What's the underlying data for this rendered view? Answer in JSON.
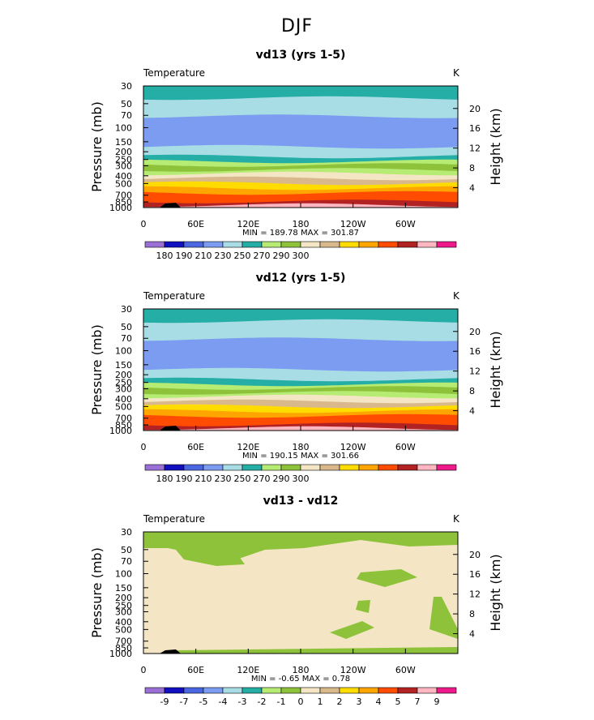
{
  "page": {
    "supertitle": "DJF"
  },
  "chart_data": [
    {
      "type": "contour",
      "title": "vd13 (yrs 1-5)",
      "variable": "Temperature",
      "units": "K",
      "ylabel": "Pressure (mb)",
      "y2label": "Height (km)",
      "xticks": [
        "0",
        "60E",
        "120E",
        "180",
        "120W",
        "60W"
      ],
      "pressure_ticks": [
        "30",
        "50",
        "70",
        "100",
        "150",
        "200",
        "250",
        "300",
        "400",
        "500",
        "700",
        "850",
        "1000"
      ],
      "height_ticks": [
        "20",
        "16",
        "12",
        "8",
        "4"
      ],
      "stats": "MIN = 189.78   MAX = 301.87",
      "min": 189.78,
      "max": 301.87,
      "contour_levels": [
        180,
        185,
        190,
        195,
        200,
        205,
        210,
        215,
        220,
        225,
        230,
        235,
        240,
        245,
        250,
        255,
        260,
        265,
        270,
        275,
        280,
        285,
        290,
        295,
        300,
        305
      ],
      "colorbar_labels": [
        "180",
        "190",
        "210",
        "230",
        "250",
        "270",
        "290",
        "300"
      ],
      "colorbar_colors": [
        "#9a6fd6",
        "#1010c0",
        "#4a66e0",
        "#7b9cf0",
        "#a8dde6",
        "#24aea5",
        "#b6ec74",
        "#8ec23b",
        "#f4e6c4",
        "#d9b98c",
        "#ffdc00",
        "#ffa500",
        "#ff4c00",
        "#b22222",
        "#ffb6c1",
        "#ee1a8c"
      ]
    },
    {
      "type": "contour",
      "title": "vd12 (yrs 1-5)",
      "variable": "Temperature",
      "units": "K",
      "ylabel": "Pressure (mb)",
      "y2label": "Height (km)",
      "xticks": [
        "0",
        "60E",
        "120E",
        "180",
        "120W",
        "60W"
      ],
      "pressure_ticks": [
        "30",
        "50",
        "70",
        "100",
        "150",
        "200",
        "250",
        "300",
        "400",
        "500",
        "700",
        "850",
        "1000"
      ],
      "height_ticks": [
        "20",
        "16",
        "12",
        "8",
        "4"
      ],
      "stats": "MIN = 190.15   MAX = 301.66",
      "min": 190.15,
      "max": 301.66,
      "contour_levels": [
        180,
        185,
        190,
        195,
        200,
        205,
        210,
        215,
        220,
        225,
        230,
        235,
        240,
        245,
        250,
        255,
        260,
        265,
        270,
        275,
        280,
        285,
        290,
        295,
        300,
        305
      ],
      "colorbar_labels": [
        "180",
        "190",
        "210",
        "230",
        "250",
        "270",
        "290",
        "300"
      ],
      "colorbar_colors": [
        "#9a6fd6",
        "#1010c0",
        "#4a66e0",
        "#7b9cf0",
        "#a8dde6",
        "#24aea5",
        "#b6ec74",
        "#8ec23b",
        "#f4e6c4",
        "#d9b98c",
        "#ffdc00",
        "#ffa500",
        "#ff4c00",
        "#b22222",
        "#ffb6c1",
        "#ee1a8c"
      ]
    },
    {
      "type": "contour",
      "title": "vd13 - vd12",
      "variable": "Temperature",
      "units": "K",
      "ylabel": "Pressure (mb)",
      "y2label": "Height (km)",
      "xticks": [
        "0",
        "60E",
        "120E",
        "180",
        "120W",
        "60W"
      ],
      "pressure_ticks": [
        "30",
        "50",
        "70",
        "100",
        "150",
        "200",
        "250",
        "300",
        "400",
        "500",
        "700",
        "850",
        "1000"
      ],
      "height_ticks": [
        "20",
        "16",
        "12",
        "8",
        "4"
      ],
      "stats": "MIN = -0.65   MAX = 0.78",
      "min": -0.65,
      "max": 0.78,
      "contour_levels": [
        -9,
        -8,
        -7,
        -6,
        -5,
        -4,
        -3,
        -2,
        -1,
        0,
        1,
        2,
        3,
        4,
        5,
        6,
        7,
        8,
        9
      ],
      "colorbar_labels": [
        "-9",
        "-7",
        "-5",
        "-4",
        "-3",
        "-2",
        "-1",
        "0",
        "1",
        "2",
        "3",
        "4",
        "5",
        "7",
        "9"
      ],
      "colorbar_colors": [
        "#9a6fd6",
        "#1010c0",
        "#4a66e0",
        "#7b9cf0",
        "#a8dde6",
        "#24aea5",
        "#b6ec74",
        "#8ec23b",
        "#f4e6c4",
        "#d9b98c",
        "#ffdc00",
        "#ffa500",
        "#ff4c00",
        "#b22222",
        "#ffb6c1",
        "#ee1a8c"
      ]
    }
  ]
}
